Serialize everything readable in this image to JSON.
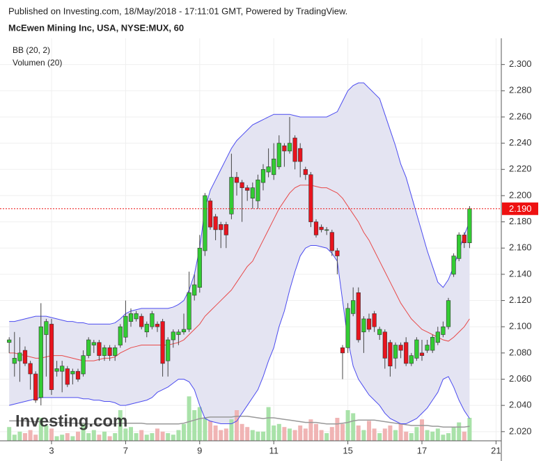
{
  "chart_data": {
    "type": "candlestick",
    "header": "Published on Investing.com, 18/May/2018 - 17:11:01 GMT, Powered by TradingView.",
    "title": "McEwen Mining Inc, USA, NYSE:MUX, 60",
    "watermark": "Investing.com",
    "categories": [
      null,
      null,
      null,
      null,
      null,
      null,
      null,
      null,
      "3",
      null,
      null,
      null,
      null,
      null,
      null,
      null,
      null,
      null,
      null,
      null,
      null,
      null,
      "7",
      null,
      null,
      null,
      null,
      null,
      null,
      null,
      null,
      null,
      null,
      null,
      null,
      null,
      "9",
      null,
      null,
      null,
      null,
      null,
      null,
      null,
      null,
      null,
      null,
      null,
      null,
      null,
      "11",
      null,
      null,
      null,
      null,
      null,
      null,
      null,
      null,
      null,
      null,
      null,
      null,
      null,
      "15",
      null,
      null,
      null,
      null,
      null,
      null,
      null,
      null,
      null,
      null,
      null,
      null,
      null,
      "17",
      null,
      null,
      null,
      null,
      null,
      null,
      null,
      null,
      null,
      null,
      null,
      null,
      null,
      "21",
      null
    ],
    "open": [
      2.088,
      2.072,
      2.074,
      2.082,
      2.072,
      2.064,
      2.046,
      2.094,
      2.102,
      2.066,
      2.066,
      2.068,
      2.064,
      2.066,
      2.064,
      2.078,
      2.086,
      2.088,
      2.078,
      2.084,
      2.078,
      2.086,
      2.092,
      2.104,
      2.106,
      2.108,
      2.096,
      2.1,
      2.102,
      2.104,
      2.074,
      2.09,
      2.094,
      2.096,
      2.098,
      2.124,
      2.13,
      2.158,
      2.196,
      2.184,
      2.178,
      2.178,
      2.186,
      2.214,
      2.21,
      2.206,
      2.198,
      2.196,
      2.21,
      2.218,
      2.216,
      2.222,
      2.238,
      2.234,
      2.244,
      2.236,
      2.22,
      2.216,
      2.18,
      2.176,
      2.174,
      2.172,
      2.158,
      2.084,
      2.084,
      2.11,
      2.126,
      2.096,
      2.106,
      2.11,
      2.094,
      2.096,
      2.088,
      2.076,
      2.086,
      2.088,
      2.072,
      2.076,
      2.08,
      2.082,
      2.082,
      2.088,
      2.094,
      2.1,
      2.14,
      2.152,
      2.17,
      2.164,
      null,
      null,
      null,
      null,
      null,
      null
    ],
    "high": [
      2.092,
      2.096,
      2.092,
      2.085,
      2.074,
      2.066,
      2.118,
      2.106,
      2.106,
      2.074,
      2.074,
      2.07,
      2.068,
      2.068,
      2.082,
      2.092,
      2.09,
      2.09,
      2.086,
      2.086,
      2.086,
      2.102,
      2.12,
      2.114,
      2.112,
      2.11,
      2.104,
      2.112,
      2.104,
      2.106,
      2.092,
      2.098,
      2.098,
      2.11,
      2.142,
      2.14,
      2.17,
      2.202,
      2.198,
      2.186,
      2.18,
      2.18,
      2.232,
      2.218,
      2.212,
      2.208,
      2.21,
      2.216,
      2.224,
      2.236,
      2.24,
      2.246,
      2.24,
      2.26,
      2.246,
      2.24,
      2.222,
      2.218,
      2.182,
      2.178,
      2.176,
      2.174,
      2.16,
      2.086,
      2.118,
      2.13,
      2.13,
      2.108,
      2.11,
      2.112,
      2.1,
      2.098,
      2.09,
      2.088,
      2.088,
      2.092,
      2.08,
      2.092,
      2.09,
      2.09,
      2.094,
      2.1,
      2.104,
      2.122,
      2.156,
      2.172,
      2.172,
      2.192,
      null,
      null,
      null,
      null,
      null,
      null
    ],
    "low": [
      2.08,
      2.062,
      2.058,
      2.07,
      2.052,
      2.042,
      2.04,
      2.062,
      2.048,
      2.062,
      2.05,
      2.054,
      2.056,
      2.058,
      2.062,
      2.076,
      2.08,
      2.074,
      2.074,
      2.074,
      2.074,
      2.084,
      2.088,
      2.1,
      2.104,
      2.098,
      2.092,
      2.098,
      2.096,
      2.062,
      2.062,
      2.084,
      2.086,
      2.094,
      2.096,
      2.12,
      2.126,
      2.154,
      2.174,
      2.166,
      2.16,
      2.16,
      2.182,
      2.2,
      2.18,
      2.196,
      2.19,
      2.19,
      2.204,
      2.214,
      2.212,
      2.22,
      2.222,
      2.232,
      2.22,
      2.214,
      2.212,
      2.176,
      2.168,
      2.172,
      2.17,
      2.154,
      2.14,
      2.06,
      2.08,
      2.108,
      2.088,
      2.08,
      2.096,
      2.096,
      2.09,
      2.068,
      2.062,
      2.068,
      2.076,
      2.07,
      2.07,
      2.074,
      2.074,
      2.08,
      2.08,
      2.086,
      2.092,
      2.098,
      2.138,
      2.15,
      2.16,
      2.16,
      null,
      null,
      null,
      null,
      null,
      null
    ],
    "close": [
      2.09,
      2.076,
      2.08,
      2.072,
      2.064,
      2.044,
      2.1,
      2.104,
      2.052,
      2.068,
      2.07,
      2.056,
      2.066,
      2.06,
      2.078,
      2.09,
      2.088,
      2.078,
      2.084,
      2.078,
      2.084,
      2.1,
      2.108,
      2.11,
      2.11,
      2.1,
      2.102,
      2.11,
      2.1,
      2.072,
      2.09,
      2.096,
      2.096,
      2.098,
      2.126,
      2.132,
      2.16,
      2.2,
      2.176,
      2.174,
      2.174,
      2.17,
      2.214,
      2.21,
      2.206,
      2.204,
      2.206,
      2.212,
      2.22,
      2.222,
      2.228,
      2.24,
      2.234,
      2.24,
      2.226,
      2.226,
      2.216,
      2.18,
      2.17,
      2.174,
      2.174,
      2.158,
      2.154,
      2.08,
      2.114,
      2.12,
      2.09,
      2.106,
      2.098,
      2.1,
      2.098,
      2.076,
      2.07,
      2.086,
      2.082,
      2.072,
      2.078,
      2.09,
      2.078,
      2.086,
      2.092,
      2.096,
      2.1,
      2.12,
      2.154,
      2.17,
      2.164,
      2.19,
      null,
      null,
      null,
      null,
      null,
      null
    ],
    "up_color": "#33cc33",
    "down_color": "#e8141e",
    "bollinger": {
      "name": "BB (20, 2)",
      "band_color": "#4b4bf0",
      "middle_color": "#e84848",
      "fill": "#e4e4f2",
      "upper": [
        2.104,
        2.104,
        2.105,
        2.106,
        2.107,
        2.108,
        2.108,
        2.108,
        2.107,
        2.106,
        2.105,
        2.104,
        2.104,
        2.103,
        2.103,
        2.102,
        2.102,
        2.102,
        2.102,
        2.102,
        2.103,
        2.106,
        2.11,
        2.112,
        2.113,
        2.114,
        2.114,
        2.114,
        2.114,
        2.114,
        2.114,
        2.115,
        2.117,
        2.12,
        2.128,
        2.14,
        2.16,
        2.19,
        2.204,
        2.212,
        2.22,
        2.228,
        2.236,
        2.242,
        2.246,
        2.25,
        2.254,
        2.256,
        2.258,
        2.26,
        2.262,
        2.262,
        2.262,
        2.262,
        2.261,
        2.26,
        2.26,
        2.26,
        2.26,
        2.26,
        2.26,
        2.262,
        2.264,
        2.272,
        2.28,
        2.284,
        2.286,
        2.286,
        2.282,
        2.278,
        2.274,
        2.262,
        2.25,
        2.238,
        2.224,
        2.214,
        2.2,
        2.186,
        2.172,
        2.158,
        2.146,
        2.134,
        2.13,
        2.136,
        2.146,
        2.158,
        2.17,
        2.18,
        null,
        null,
        null,
        null,
        null,
        null
      ],
      "middle": [
        2.08,
        2.08,
        2.079,
        2.078,
        2.077,
        2.076,
        2.076,
        2.077,
        2.078,
        2.078,
        2.078,
        2.077,
        2.076,
        2.075,
        2.074,
        2.074,
        2.074,
        2.075,
        2.076,
        2.076,
        2.077,
        2.08,
        2.082,
        2.084,
        2.085,
        2.086,
        2.086,
        2.086,
        2.086,
        2.086,
        2.086,
        2.087,
        2.088,
        2.09,
        2.094,
        2.098,
        2.102,
        2.108,
        2.112,
        2.116,
        2.12,
        2.124,
        2.128,
        2.134,
        2.14,
        2.146,
        2.15,
        2.158,
        2.166,
        2.174,
        2.182,
        2.19,
        2.196,
        2.202,
        2.206,
        2.208,
        2.208,
        2.208,
        2.207,
        2.206,
        2.206,
        2.204,
        2.202,
        2.198,
        2.192,
        2.186,
        2.18,
        2.172,
        2.166,
        2.158,
        2.15,
        2.142,
        2.134,
        2.126,
        2.118,
        2.112,
        2.106,
        2.102,
        2.098,
        2.096,
        2.094,
        2.092,
        2.09,
        2.089,
        2.092,
        2.096,
        2.1,
        2.106,
        null,
        null,
        null,
        null,
        null,
        null
      ],
      "lower": [
        2.04,
        2.041,
        2.042,
        2.043,
        2.044,
        2.045,
        2.046,
        2.046,
        2.046,
        2.046,
        2.046,
        2.046,
        2.046,
        2.046,
        2.045,
        2.045,
        2.044,
        2.044,
        2.043,
        2.043,
        2.042,
        2.04,
        2.04,
        2.041,
        2.042,
        2.043,
        2.044,
        2.046,
        2.05,
        2.052,
        2.054,
        2.057,
        2.06,
        2.06,
        2.058,
        2.052,
        2.04,
        2.03,
        2.028,
        2.027,
        2.026,
        2.026,
        2.026,
        2.028,
        2.034,
        2.04,
        2.046,
        2.052,
        2.062,
        2.074,
        2.084,
        2.1,
        2.112,
        2.128,
        2.142,
        2.154,
        2.16,
        2.162,
        2.162,
        2.161,
        2.16,
        2.156,
        2.15,
        2.12,
        2.09,
        2.07,
        2.06,
        2.054,
        2.048,
        2.044,
        2.04,
        2.034,
        2.03,
        2.028,
        2.026,
        2.026,
        2.028,
        2.03,
        2.034,
        2.038,
        2.044,
        2.05,
        2.06,
        2.062,
        2.054,
        2.044,
        2.036,
        2.03,
        null,
        null,
        null,
        null,
        null,
        null
      ]
    },
    "volume": {
      "name": "Volumen (20)",
      "up_color": "#a9e2a9",
      "down_color": "#f0b4b4",
      "ma_color": "#999999",
      "lim": [
        0,
        100
      ],
      "values": [
        18,
        8,
        12,
        10,
        14,
        8,
        30,
        20,
        16,
        6,
        8,
        10,
        6,
        12,
        22,
        10,
        14,
        8,
        12,
        6,
        10,
        40,
        16,
        18,
        10,
        14,
        8,
        10,
        16,
        12,
        10,
        8,
        14,
        22,
        58,
        40,
        44,
        30,
        26,
        20,
        14,
        16,
        28,
        40,
        22,
        18,
        14,
        12,
        12,
        44,
        20,
        22,
        18,
        16,
        14,
        20,
        16,
        28,
        22,
        14,
        10,
        18,
        30,
        22,
        40,
        36,
        20,
        14,
        26,
        16,
        10,
        16,
        20,
        14,
        22,
        12,
        10,
        18,
        28,
        14,
        12,
        16,
        8,
        10,
        18,
        24,
        12,
        30,
        null,
        null,
        null,
        null,
        null,
        null
      ],
      "ma": [
        26,
        26,
        26,
        26,
        25,
        25,
        25,
        25,
        24,
        24,
        24,
        24,
        23,
        23,
        23,
        22,
        22,
        22,
        22,
        22,
        22,
        23,
        23,
        23,
        23,
        23,
        22,
        22,
        22,
        22,
        22,
        22,
        22,
        23,
        25,
        27,
        29,
        30,
        31,
        31,
        31,
        31,
        31,
        32,
        32,
        32,
        31,
        30,
        29,
        30,
        30,
        29,
        28,
        27,
        26,
        25,
        24,
        24,
        24,
        23,
        22,
        22,
        22,
        23,
        24,
        26,
        27,
        27,
        27,
        27,
        26,
        25,
        24,
        23,
        22,
        21,
        20,
        20,
        20,
        20,
        19,
        19,
        18,
        18,
        18,
        18,
        18,
        19,
        null,
        null,
        null,
        null,
        null,
        null
      ]
    },
    "last_price": {
      "value": 2.19,
      "label": "2.190",
      "color": "#ee1111"
    },
    "ylim": [
      2.013,
      2.32
    ],
    "yticks": [
      {
        "value": 2.02,
        "label": "2.020"
      },
      {
        "value": 2.04,
        "label": "2.040"
      },
      {
        "value": 2.06,
        "label": "2.060"
      },
      {
        "value": 2.08,
        "label": "2.080"
      },
      {
        "value": 2.1,
        "label": "2.100"
      },
      {
        "value": 2.12,
        "label": "2.120"
      },
      {
        "value": 2.14,
        "label": "2.140"
      },
      {
        "value": 2.16,
        "label": "2.160"
      },
      {
        "value": 2.18,
        "label": "2.180"
      },
      {
        "value": 2.2,
        "label": "2.200"
      },
      {
        "value": 2.22,
        "label": "2.220"
      },
      {
        "value": 2.24,
        "label": "2.240"
      },
      {
        "value": 2.26,
        "label": "2.260"
      },
      {
        "value": 2.28,
        "label": "2.280"
      },
      {
        "value": 2.3,
        "label": "2.300"
      }
    ],
    "grid": true
  }
}
